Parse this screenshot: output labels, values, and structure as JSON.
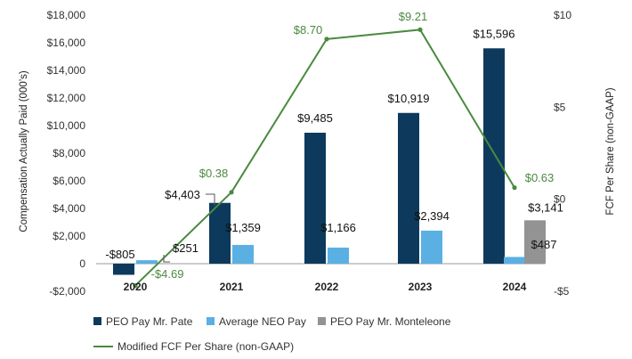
{
  "chart_data": {
    "type": "bar",
    "categories": [
      "2020",
      "2021",
      "2022",
      "2023",
      "2024"
    ],
    "ylabel": "Compensation Actually Paid (000’s)",
    "y2label": "FCF Per Share (non-GAAP)",
    "ylim": [
      -2000,
      18000
    ],
    "y2lim": [
      -5,
      10
    ],
    "y_ticks": [
      -2000,
      0,
      2000,
      4000,
      6000,
      8000,
      10000,
      12000,
      14000,
      16000,
      18000
    ],
    "y_tick_labels": [
      "-$2,000",
      "0",
      "$2,000",
      "$4,000",
      "$6,000",
      "$8,000",
      "$10,000",
      "$12,000",
      "$14,000",
      "$16,000",
      "$18,000"
    ],
    "y2_ticks": [
      -5,
      0,
      5,
      10
    ],
    "y2_tick_labels": [
      "-$5",
      "$0",
      "$5",
      "$10"
    ],
    "series": [
      {
        "name": "PEO Pay Mr. Pate",
        "color": "#0d3a5c",
        "values": [
          -805,
          4403,
          9485,
          10919,
          15596
        ],
        "labels": [
          "-$805",
          "$4,403",
          "$9,485",
          "$10,919",
          "$15,596"
        ]
      },
      {
        "name": "Average NEO Pay",
        "color": "#5ab0e3",
        "values": [
          251,
          1359,
          1166,
          2394,
          487
        ],
        "labels": [
          "$251",
          "$1,359",
          "$1,166",
          "$2,394",
          "$487"
        ]
      },
      {
        "name": "PEO Pay Mr. Monteleone",
        "color": "#939393",
        "values": [
          null,
          null,
          null,
          null,
          3141
        ],
        "labels": [
          null,
          null,
          null,
          null,
          "$3,141"
        ]
      }
    ],
    "line_series": {
      "name": "Modified FCF Per Share (non-GAAP)",
      "color": "#4a8a3f",
      "axis": "right",
      "values": [
        -4.69,
        0.38,
        8.7,
        9.21,
        0.63
      ],
      "labels": [
        "-$4.69",
        "$0.38",
        "$8.70",
        "$9.21",
        "$0.63"
      ]
    }
  }
}
